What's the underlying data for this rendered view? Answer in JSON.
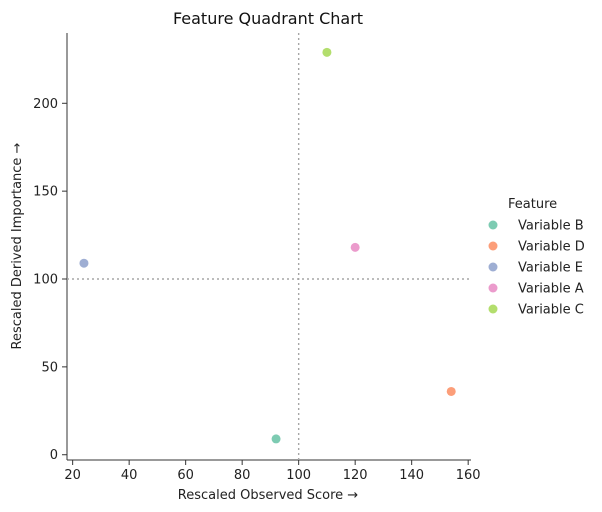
{
  "chart_data": {
    "type": "scatter",
    "title": "Feature Quadrant Chart",
    "xlabel": "Rescaled Observed Score →",
    "ylabel": "Rescaled Derived Importance →",
    "xlim": [
      18,
      161
    ],
    "ylim": [
      -3,
      240
    ],
    "xticks": [
      20,
      40,
      60,
      80,
      100,
      120,
      140,
      160
    ],
    "yticks": [
      0,
      50,
      100,
      150,
      200
    ],
    "reference_lines": {
      "x": 100,
      "y": 100,
      "style": "dotted",
      "color": "#a6a6a6"
    },
    "legend": {
      "title": "Feature",
      "placement": "right"
    },
    "grid": false,
    "series": [
      {
        "name": "Variable B",
        "color": "#66c2a5",
        "points": [
          {
            "x": 92,
            "y": 9
          }
        ]
      },
      {
        "name": "Variable D",
        "color": "#fc8d62",
        "points": [
          {
            "x": 154,
            "y": 36
          }
        ]
      },
      {
        "name": "Variable E",
        "color": "#8da0cb",
        "points": [
          {
            "x": 24,
            "y": 109
          }
        ]
      },
      {
        "name": "Variable A",
        "color": "#e78ac3",
        "points": [
          {
            "x": 120,
            "y": 118
          }
        ]
      },
      {
        "name": "Variable C",
        "color": "#a6d854",
        "points": [
          {
            "x": 110,
            "y": 229
          }
        ]
      }
    ]
  }
}
